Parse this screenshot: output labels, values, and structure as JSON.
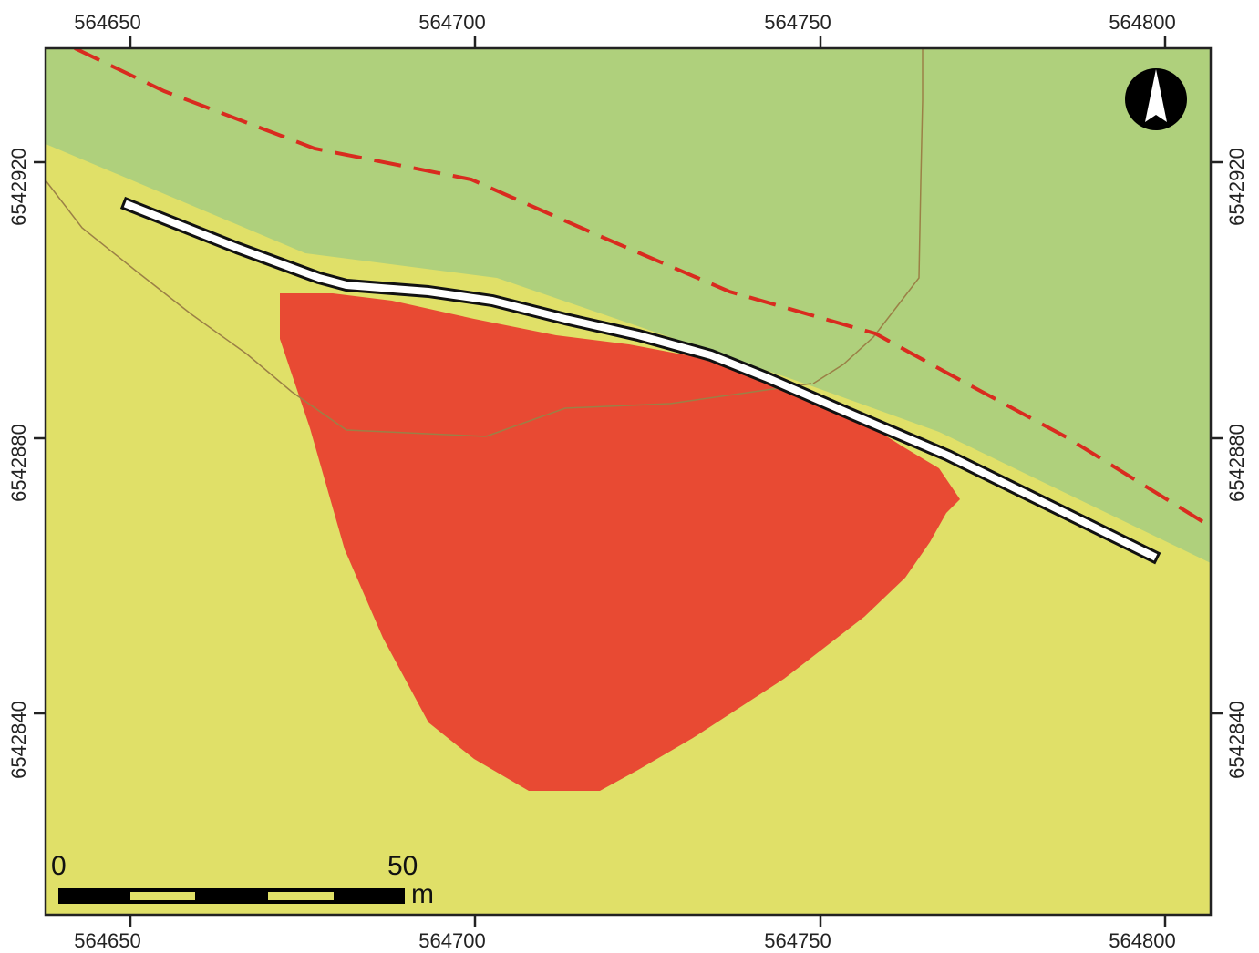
{
  "map": {
    "x_ticks": [
      "564650",
      "564700",
      "564750",
      "564800"
    ],
    "y_ticks": [
      "6542920",
      "6542880",
      "6542840"
    ],
    "scale_bar": {
      "start_label": "0",
      "end_label": "50",
      "unit_label": "m"
    },
    "north_arrow": {
      "icon": "north-arrow-icon"
    },
    "colors": {
      "upper_zone": "#afd07c",
      "lower_zone": "#e0e068",
      "red_area": "#e84a33",
      "dashed_boundary": "#d92b1f",
      "thin_line": "#9b8046",
      "frame": "#222222"
    }
  }
}
